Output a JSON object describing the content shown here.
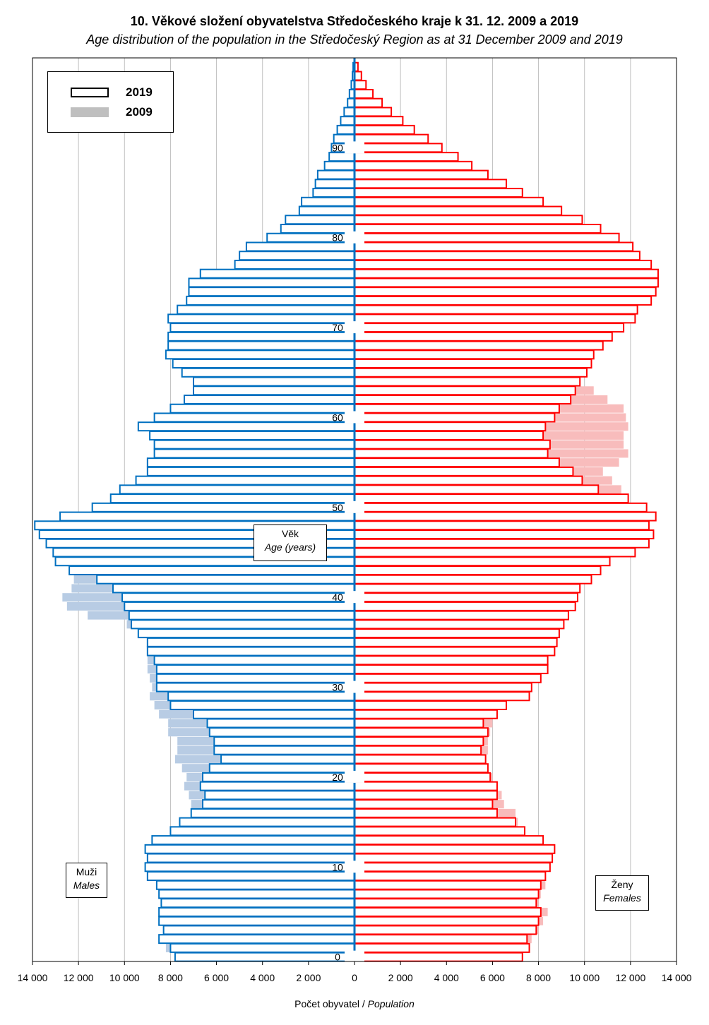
{
  "title": "10. Věkové složení obyvatelstva Středočeského kraje k 31. 12. 2009 a 2019",
  "subtitle": "Age distribution of the population in the Středočeský Region as at 31 December 2009 and 2019",
  "legend": {
    "items": [
      "2019",
      "2009"
    ]
  },
  "labels": {
    "age_cs": "Věk",
    "age_en": "Age (years)",
    "males_cs": "Muži",
    "males_en": "Males",
    "females_cs": "Ženy",
    "females_en": "Females",
    "xlabel_cs": "Počet obyvatel",
    "xlabel_sep": " / ",
    "xlabel_en": "Population"
  },
  "colors": {
    "male_2019": "#0070C0",
    "male_2009": "#B8CCE4",
    "female_2019": "#FF0000",
    "female_2009": "#F8BCBC",
    "grid": "#C0C0C0"
  },
  "chart_data": {
    "type": "bar",
    "orientation": "horizontal",
    "xlim": [
      -14000,
      14000
    ],
    "ylim": [
      0,
      100
    ],
    "x_ticks": [
      -14000,
      -12000,
      -10000,
      -8000,
      -6000,
      -4000,
      -2000,
      0,
      2000,
      4000,
      6000,
      8000,
      10000,
      12000,
      14000
    ],
    "x_tick_labels": [
      "14 000",
      "12 000",
      "10 000",
      "8 000",
      "6 000",
      "4 000",
      "2 000",
      "0",
      "2 000",
      "4 000",
      "6 000",
      "8 000",
      "10 000",
      "12 000",
      "14 000"
    ],
    "y_ticks": [
      0,
      10,
      20,
      30,
      40,
      50,
      60,
      70,
      80,
      90
    ],
    "grid_x": true,
    "legend_position": "top-left",
    "age_min": 0,
    "age_max": 99,
    "series": [
      {
        "name": "2019",
        "sex": "males",
        "style": "outline",
        "values": [
          7800,
          8000,
          8500,
          8300,
          8500,
          8500,
          8400,
          8500,
          8600,
          9000,
          9100,
          9000,
          9100,
          8800,
          8000,
          7600,
          7100,
          6600,
          6500,
          6700,
          6600,
          6300,
          5800,
          6100,
          6100,
          6300,
          6400,
          7000,
          8000,
          8100,
          8600,
          8600,
          8600,
          8700,
          9000,
          9000,
          9400,
          9700,
          9800,
          10000,
          10100,
          10500,
          11200,
          12400,
          13000,
          13100,
          13400,
          13700,
          13900,
          12800,
          11400,
          10600,
          10200,
          9500,
          9000,
          9000,
          8700,
          8700,
          8900,
          9400,
          8700,
          8000,
          7400,
          7000,
          7000,
          7500,
          7900,
          8200,
          8100,
          8100,
          8000,
          8100,
          7700,
          7300,
          7200,
          7200,
          6700,
          5200,
          5000,
          4700,
          3800,
          3200,
          3000,
          2400,
          2300,
          1800,
          1700,
          1600,
          1300,
          1100,
          1000,
          900,
          750,
          600,
          450,
          300,
          220,
          140,
          90,
          60
        ]
      },
      {
        "name": "2009",
        "sex": "males",
        "style": "filled",
        "values": [
          7700,
          8200,
          8100,
          7600,
          7300,
          7200,
          6500,
          6200,
          6200,
          5800,
          5400,
          5300,
          5000,
          5500,
          5600,
          5900,
          6200,
          7100,
          7200,
          7400,
          7300,
          7500,
          7800,
          7700,
          7700,
          8100,
          8100,
          8500,
          8700,
          8900,
          8800,
          8900,
          9000,
          9000,
          8900,
          8600,
          8800,
          9900,
          11600,
          12500,
          12700,
          12300,
          12200,
          12000,
          11600,
          12800,
          12800,
          11700,
          10900,
          9800,
          8500,
          8300,
          8700,
          8500,
          8500,
          8500,
          7900,
          7700,
          6800,
          6600,
          6400,
          6100,
          5800,
          5600,
          5700,
          5400,
          5100,
          4400,
          4300,
          4600,
          3800,
          3600,
          3300,
          3100,
          2900,
          2900,
          2900,
          2800,
          2500,
          2400,
          2200,
          2000,
          1800,
          1700,
          1600,
          1500,
          1350,
          1200,
          1000,
          850,
          700,
          600,
          450,
          320,
          250,
          170,
          100,
          60,
          30,
          15
        ]
      },
      {
        "name": "2019",
        "sex": "females",
        "style": "outline",
        "values": [
          7300,
          7600,
          7500,
          7900,
          8000,
          8100,
          7900,
          8000,
          8100,
          8300,
          8500,
          8600,
          8700,
          8200,
          7400,
          7000,
          6200,
          6000,
          6200,
          6200,
          5900,
          5800,
          5700,
          5500,
          5600,
          5800,
          5600,
          6200,
          6600,
          7600,
          7700,
          8100,
          8400,
          8400,
          8700,
          8800,
          8900,
          9100,
          9300,
          9600,
          9700,
          9800,
          10300,
          10700,
          11100,
          12200,
          12800,
          13000,
          12800,
          13100,
          12700,
          11900,
          10600,
          9900,
          9500,
          8900,
          8400,
          8500,
          8200,
          8300,
          8700,
          8900,
          9400,
          9600,
          9800,
          10100,
          10300,
          10400,
          10800,
          11200,
          11700,
          12200,
          12300,
          12900,
          13100,
          13200,
          13200,
          12900,
          12400,
          12100,
          11500,
          10700,
          9900,
          9000,
          8200,
          7300,
          6600,
          5800,
          5100,
          4500,
          3800,
          3200,
          2600,
          2100,
          1600,
          1200,
          800,
          500,
          300,
          150
        ]
      },
      {
        "name": "2009",
        "sex": "females",
        "style": "filled",
        "values": [
          7000,
          7300,
          7700,
          8000,
          8200,
          8400,
          8000,
          8100,
          8300,
          7800,
          7500,
          7400,
          7300,
          7100,
          7200,
          7100,
          7000,
          6500,
          6400,
          6200,
          6000,
          5800,
          5700,
          5800,
          5800,
          5900,
          6000,
          6000,
          6200,
          6400,
          6300,
          6300,
          6400,
          6500,
          6500,
          6600,
          6600,
          6900,
          7000,
          7200,
          7400,
          7600,
          8000,
          8300,
          8700,
          9000,
          9500,
          10100,
          10800,
          11700,
          11700,
          11900,
          11600,
          11200,
          10800,
          11500,
          11900,
          11700,
          11700,
          11900,
          11800,
          11700,
          11000,
          10400,
          9600,
          9400,
          8800,
          8300,
          8400,
          8200,
          8000,
          7700,
          7500,
          7100,
          6700,
          6300,
          6100,
          5900,
          5600,
          5300,
          4900,
          4600,
          4200,
          3700,
          3300,
          2900,
          2500,
          2100,
          1700,
          1300,
          1000,
          750,
          550,
          380,
          250,
          160,
          90,
          50,
          25,
          10
        ]
      }
    ]
  }
}
